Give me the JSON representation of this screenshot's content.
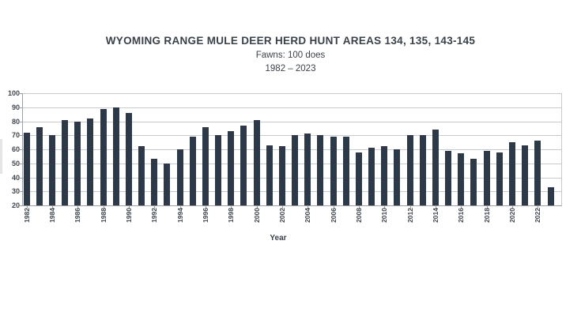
{
  "header": {
    "title": "WYOMING RANGE MULE DEER HERD HUNT AREAS 134, 135, 143-145",
    "subtitle": "Fawns: 100 does",
    "date_range": "1982 – 2023"
  },
  "chart_data": {
    "type": "bar",
    "title": "WYOMING RANGE MULE DEER HERD HUNT AREAS 134, 135, 143-145",
    "subtitle": "Fawns: 100 does",
    "period": "1982 – 2023",
    "xlabel": "Year",
    "ylabel": "",
    "ylim": [
      20,
      100
    ],
    "yticks": [
      20,
      30,
      40,
      50,
      60,
      70,
      80,
      90,
      100
    ],
    "grid": true,
    "legend": "none",
    "bar_color": "#2e3947",
    "categories": [
      1982,
      1983,
      1984,
      1985,
      1986,
      1987,
      1988,
      1989,
      1990,
      1991,
      1992,
      1993,
      1994,
      1995,
      1996,
      1997,
      1998,
      1999,
      2000,
      2001,
      2002,
      2003,
      2004,
      2005,
      2006,
      2007,
      2008,
      2009,
      2010,
      2011,
      2012,
      2013,
      2014,
      2015,
      2016,
      2017,
      2018,
      2019,
      2020,
      2021,
      2022,
      2023
    ],
    "values": [
      72,
      76,
      70,
      81,
      80,
      82,
      89,
      90,
      86,
      62,
      53,
      50,
      60,
      69,
      76,
      70,
      73,
      77,
      81,
      63,
      62,
      70,
      71,
      70,
      69,
      69,
      58,
      61,
      62,
      60,
      70,
      70,
      74,
      59,
      57,
      53,
      59,
      58,
      65,
      63,
      66,
      33
    ],
    "xtick_labels": [
      "1982",
      "1984",
      "1986",
      "1988",
      "1990",
      "1992",
      "1994",
      "1996",
      "1998",
      "2000",
      "2002",
      "2004",
      "2006",
      "2008",
      "2010",
      "2012",
      "2014",
      "2016",
      "2018",
      "2020",
      "2022"
    ]
  }
}
